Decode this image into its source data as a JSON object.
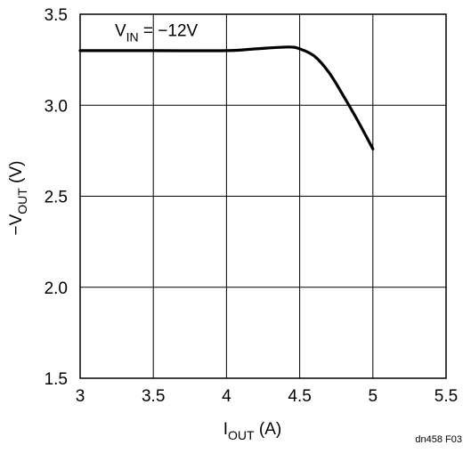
{
  "chart_data": {
    "type": "line",
    "title": "",
    "xlabel": {
      "main": "I",
      "sub": "OUT",
      "unit": " (A)"
    },
    "ylabel": {
      "prefix": "−V",
      "sub": "OUT",
      "unit": " (V)"
    },
    "xlim": [
      3,
      5.5
    ],
    "ylim": [
      1.5,
      3.5
    ],
    "x_ticks": [
      3,
      3.5,
      4,
      4.5,
      5,
      5.5
    ],
    "x_tick_labels": [
      "3",
      "3.5",
      "4",
      "4.5",
      "5",
      "5.5"
    ],
    "y_ticks": [
      1.5,
      2.0,
      2.5,
      3.0,
      3.5
    ],
    "y_tick_labels": [
      "1.5",
      "2.0",
      "2.5",
      "3.0",
      "3.5"
    ],
    "grid": true,
    "annotation": {
      "main": "V",
      "sub": "IN",
      "rest": " = −12V",
      "x": 3.45,
      "y": 3.36
    },
    "figure_code": "dn458 F03",
    "series": [
      {
        "values": [
          {
            "x": 3.0,
            "y": 3.3
          },
          {
            "x": 3.5,
            "y": 3.3
          },
          {
            "x": 4.0,
            "y": 3.3
          },
          {
            "x": 4.2,
            "y": 3.31
          },
          {
            "x": 4.42,
            "y": 3.32
          },
          {
            "x": 4.5,
            "y": 3.31
          },
          {
            "x": 4.6,
            "y": 3.27
          },
          {
            "x": 4.7,
            "y": 3.18
          },
          {
            "x": 4.8,
            "y": 3.05
          },
          {
            "x": 4.9,
            "y": 2.91
          },
          {
            "x": 5.0,
            "y": 2.76
          }
        ]
      }
    ],
    "colors": {
      "line": "#000000",
      "grid": "#000000",
      "background": "#ffffff"
    }
  }
}
